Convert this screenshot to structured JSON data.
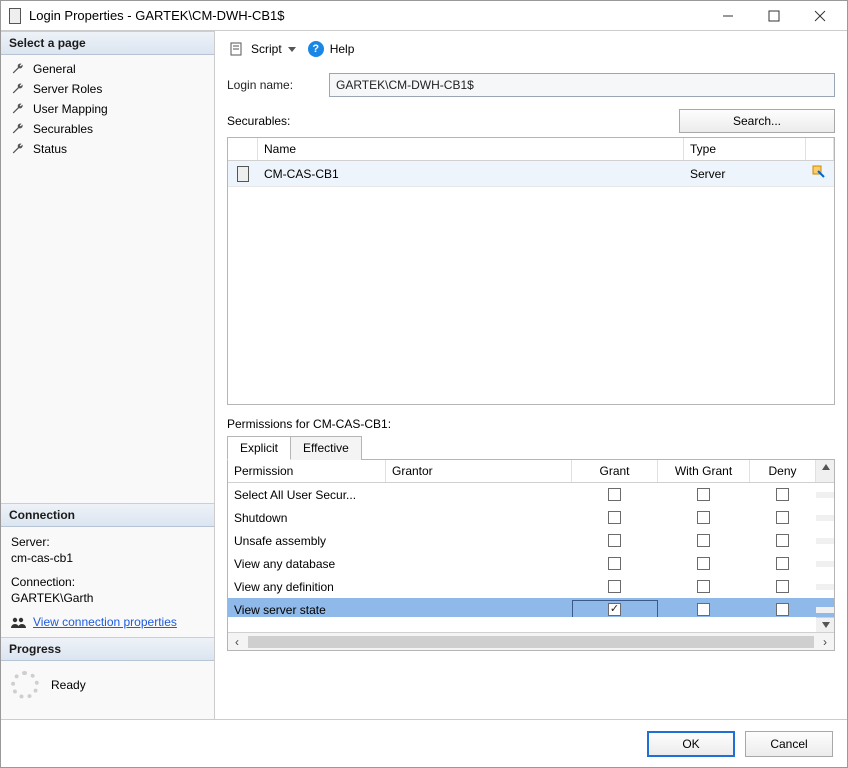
{
  "title": "Login Properties - GARTEK\\CM-DWH-CB1$",
  "sidebar": {
    "select_header": "Select a page",
    "pages": [
      "General",
      "Server Roles",
      "User Mapping",
      "Securables",
      "Status"
    ],
    "connection_header": "Connection",
    "server_label": "Server:",
    "server_value": "cm-cas-cb1",
    "connection_label": "Connection:",
    "connection_value": "GARTEK\\Garth",
    "view_conn_link": "View connection properties",
    "progress_header": "Progress",
    "progress_status": "Ready"
  },
  "toolbar": {
    "script": "Script",
    "help": "Help"
  },
  "form": {
    "login_label": "Login name:",
    "login_value": "GARTEK\\CM-DWH-CB1$",
    "securables_label": "Securables:",
    "search_button": "Search..."
  },
  "sec_columns": {
    "name": "Name",
    "type": "Type"
  },
  "sec_rows": [
    {
      "name": "CM-CAS-CB1",
      "type": "Server"
    }
  ],
  "perm": {
    "label": "Permissions for CM-CAS-CB1:",
    "tab_explicit": "Explicit",
    "tab_effective": "Effective",
    "columns": {
      "permission": "Permission",
      "grantor": "Grantor",
      "grant": "Grant",
      "with": "With Grant",
      "deny": "Deny"
    },
    "rows": [
      {
        "permission": "Select All User Secur...",
        "grant": false,
        "with": false,
        "deny": false,
        "selected": false
      },
      {
        "permission": "Shutdown",
        "grant": false,
        "with": false,
        "deny": false,
        "selected": false
      },
      {
        "permission": "Unsafe assembly",
        "grant": false,
        "with": false,
        "deny": false,
        "selected": false
      },
      {
        "permission": "View any database",
        "grant": false,
        "with": false,
        "deny": false,
        "selected": false
      },
      {
        "permission": "View any definition",
        "grant": false,
        "with": false,
        "deny": false,
        "selected": false
      },
      {
        "permission": "View server state",
        "grant": true,
        "with": false,
        "deny": false,
        "selected": true
      }
    ]
  },
  "footer": {
    "ok": "OK",
    "cancel": "Cancel"
  },
  "colors": {
    "selected_row": "#8fb9e8",
    "header_grad_top": "#eef2f8",
    "header_grad_bot": "#dbe5f1",
    "primary_border": "#1e6fd6"
  }
}
